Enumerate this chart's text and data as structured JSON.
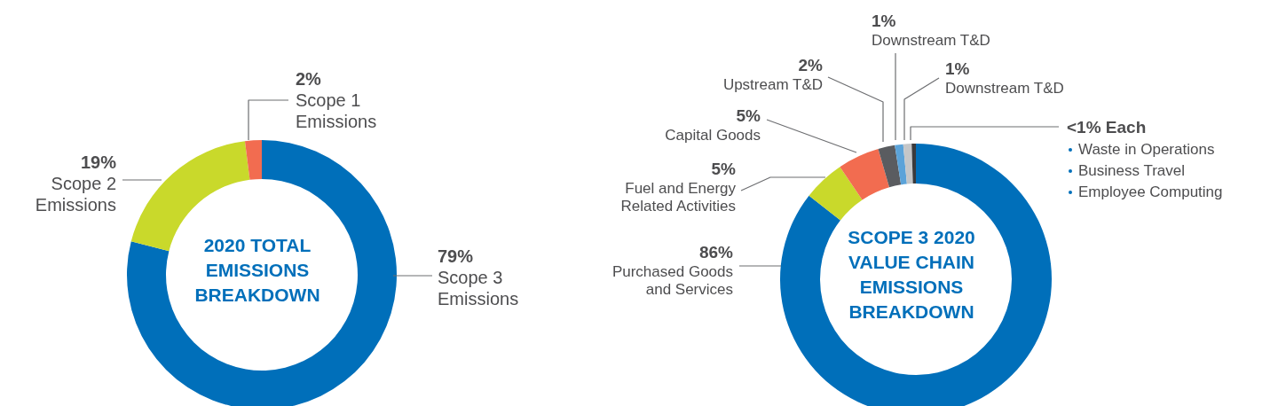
{
  "chart_data": [
    {
      "type": "donut",
      "title": "2020 TOTAL EMISSIONS BREAKDOWN",
      "categories": [
        "Scope 3 Emissions",
        "Scope 2 Emissions",
        "Scope 1 Emissions"
      ],
      "values": [
        79,
        19,
        2
      ],
      "colors": [
        "#006fba",
        "#c9d92b",
        "#f26c50"
      ],
      "value_labels": [
        "79%",
        "19%",
        "2%"
      ]
    },
    {
      "type": "donut",
      "title": "SCOPE 3 2020 VALUE CHAIN EMISSIONS BREAKDOWN",
      "categories": [
        "Purchased Goods and Services",
        "Fuel and Energy Related Activities",
        "Capital Goods",
        "Upstream T&D",
        "Downstream T&D",
        "Downstream T&D",
        null
      ],
      "values": [
        86,
        5,
        5,
        2,
        1,
        1,
        0.5
      ],
      "colors": [
        "#006fba",
        "#c9d92b",
        "#f26c50",
        "#5a5c60",
        "#5ba3d9",
        "#c4c6c8",
        "#3a3a3c"
      ],
      "value_labels": [
        "86%",
        "5%",
        "5%",
        "2%",
        "1%",
        "1%",
        "<1% Each"
      ],
      "annotations": [
        "Waste in Operations",
        "Business Travel",
        "Employee Computing"
      ]
    }
  ]
}
